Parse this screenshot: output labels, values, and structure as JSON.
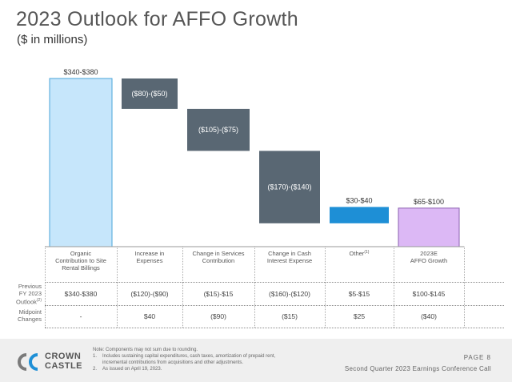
{
  "title": "2023 Outlook for AFFO Growth",
  "subtitle": "($ in millions)",
  "colors": {
    "organic": "#c6e6fb",
    "organic_border": "#4aa4d9",
    "decrease": "#596773",
    "other": "#1e8fd6",
    "result": "#dcb8f5",
    "result_border": "#8a5fb0"
  },
  "chart_data": {
    "type": "waterfall",
    "categories": [
      "Organic Contribution to Site Rental Billings",
      "Increase in Expenses",
      "Change in Services Contribution",
      "Change in Cash Interest Expense",
      "Other",
      "2023E AFFO Growth"
    ],
    "category_lines": [
      [
        "Organic",
        "Contribution to Site",
        "Rental Billings"
      ],
      [
        "Increase in",
        "Expenses"
      ],
      [
        "Change in Services",
        "Contribution"
      ],
      [
        "Change in Cash",
        "Interest Expense"
      ],
      [
        "Other"
      ],
      [
        "2023E",
        "AFFO Growth"
      ]
    ],
    "footnote_markers": [
      "",
      "",
      "",
      "",
      "(1)",
      ""
    ],
    "data_labels": [
      "$340-$380",
      "($80)-($50)",
      "($105)-($75)",
      "($170)-($140)",
      "$30-$40",
      "$65-$100"
    ],
    "midpoints": [
      360,
      -65,
      -90,
      -155,
      35,
      82.5
    ],
    "bar_ranges": [
      [
        0,
        360
      ],
      [
        295,
        360
      ],
      [
        205,
        295
      ],
      [
        50,
        205
      ],
      [
        50,
        85
      ],
      [
        0,
        82.5
      ]
    ],
    "kinds": [
      "organic",
      "decrease",
      "decrease",
      "decrease",
      "other",
      "result"
    ]
  },
  "table": {
    "row_labels": [
      "Previous\nFY 2023\nOutlook",
      "Midpoint\nChanges"
    ],
    "row_label_footnote": "(2)",
    "rows": [
      [
        "$340-$380",
        "($120)-($90)",
        "($15)-$15",
        "($160)-($120)",
        "$5-$15",
        "$100-$145"
      ],
      [
        "-",
        "$40",
        "($90)",
        "($15)",
        "$25",
        "($40)"
      ]
    ]
  },
  "footer": {
    "logo_line1": "CROWN",
    "logo_line2": "CASTLE",
    "note": "Note: Components may not sum due to rounding.",
    "footnote1_num": "1.",
    "footnote1_line1": "Includes sustaining capital expenditures, cash taxes, amortization of prepaid rent,",
    "footnote1_line2": "incremental contributions from acquisitions and other adjustments.",
    "footnote2_num": "2.",
    "footnote2": "As issued on April 19, 2023.",
    "page": "PAGE  8",
    "call": "Second Quarter 2023 Earnings Conference Call"
  }
}
